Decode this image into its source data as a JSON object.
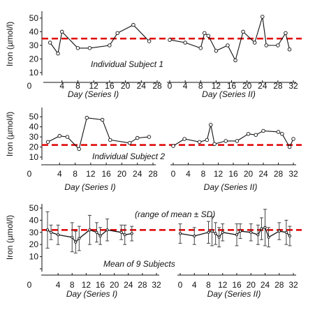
{
  "chart_data": [
    {
      "type": "line",
      "ylabel": "Iron (µmol/l)",
      "annotation": "Individual Subject 1",
      "ylim": [
        10,
        52
      ],
      "yticks": [
        10,
        20,
        30,
        40,
        50
      ],
      "ytick_labels": [
        "10",
        "20",
        "30",
        "40",
        "50"
      ],
      "reference_line": 35,
      "reference_color": "#e00000",
      "panels": [
        {
          "xlabel": "Day (Series I)",
          "xlim": [
            0,
            28
          ],
          "xticks": [
            4,
            8,
            12,
            16,
            20,
            24,
            28
          ],
          "xtick_labels": [
            "4",
            "8",
            "12",
            "16",
            "20",
            "24",
            "28"
          ],
          "series": [
            {
              "x": [
                1,
                3,
                4,
                8,
                11,
                16,
                18,
                22,
                26
              ],
              "y": [
                32,
                24,
                40,
                28,
                28,
                30,
                39,
                45,
                33
              ]
            }
          ]
        },
        {
          "xlabel": "Day (Series II)",
          "xlim": [
            0,
            32
          ],
          "xticks": [
            0,
            4,
            8,
            12,
            16,
            20,
            24,
            28,
            32
          ],
          "xtick_labels": [
            "0",
            "4",
            "8",
            "12",
            "16",
            "20",
            "24",
            "28",
            "32"
          ],
          "series": [
            {
              "x": [
                0,
                4,
                8,
                9,
                10,
                12,
                15,
                17,
                19,
                22,
                24,
                25,
                28,
                30,
                31
              ],
              "y": [
                34,
                32,
                28,
                39,
                37,
                26,
                30,
                19,
                40,
                32,
                51,
                30,
                30,
                39,
                27
              ]
            }
          ]
        }
      ]
    },
    {
      "type": "line",
      "ylabel": "Iron (µmol/l)",
      "annotation": "Individual Subject 2",
      "ylim": [
        10,
        55
      ],
      "yticks": [
        10,
        20,
        30,
        40,
        50
      ],
      "ytick_labels": [
        "10",
        "20",
        "30",
        "40",
        "50"
      ],
      "reference_line": 22,
      "reference_color": "#e00000",
      "panels": [
        {
          "xlabel": "Day (Series I)",
          "xlim": [
            0,
            28
          ],
          "xticks": [
            4,
            8,
            12,
            16,
            20,
            24,
            28
          ],
          "xtick_labels": [
            "4",
            "8",
            "12",
            "16",
            "20",
            "24",
            "28"
          ],
          "series": [
            {
              "x": [
                1,
                4,
                6,
                9,
                11,
                15,
                17,
                22,
                24,
                27
              ],
              "y": [
                25,
                31,
                30,
                18,
                49,
                47,
                27,
                24,
                29,
                30
              ]
            }
          ]
        },
        {
          "xlabel": "Day (Series II)",
          "xlim": [
            0,
            32
          ],
          "xticks": [
            0,
            4,
            8,
            12,
            16,
            20,
            24,
            28,
            32
          ],
          "xtick_labels": [
            "0",
            "4",
            "8",
            "12",
            "16",
            "20",
            "24",
            "28",
            "32"
          ],
          "series": [
            {
              "x": [
                0,
                3,
                7,
                9,
                10,
                11,
                14,
                17,
                20,
                22,
                24,
                28,
                29,
                31,
                32
              ],
              "y": [
                21,
                28,
                25,
                27,
                42,
                23,
                26,
                26,
                33,
                32,
                36,
                35,
                33,
                20,
                28
              ]
            }
          ]
        }
      ]
    },
    {
      "type": "line",
      "ylabel": "Iron (µmol/l)",
      "annotation": "(range of mean ± SD)",
      "annotation_2": "Mean of 9 Subjects",
      "ylim": [
        0,
        50
      ],
      "yticks": [
        0,
        10,
        20,
        30,
        40,
        50
      ],
      "ytick_labels": [
        "",
        "10",
        "20",
        "30",
        "40",
        "50"
      ],
      "reference_line": 32,
      "reference_color": "#e00000",
      "panels": [
        {
          "xlabel": "Day (Series I)",
          "xlim": [
            0,
            32
          ],
          "xticks": [
            4,
            8,
            12,
            16,
            20,
            24,
            28,
            32
          ],
          "xtick_labels": [
            "4",
            "8",
            "12",
            "16",
            "20",
            "24",
            "28",
            "32"
          ],
          "series": [
            {
              "x": [
                1,
                2,
                4,
                8,
                9,
                10,
                13,
                15,
                16,
                18,
                22,
                23,
                25
              ],
              "y": [
                32,
                30,
                28,
                26,
                22,
                25,
                32,
                30,
                27,
                32,
                30,
                28,
                29
              ],
              "err": [
                15,
                6,
                8,
                12,
                9,
                10,
                12,
                8,
                7,
                9,
                6,
                8,
                6
              ]
            }
          ]
        },
        {
          "xlabel": "Day (Series II)",
          "xlim": [
            0,
            32
          ],
          "xticks": [
            0,
            4,
            8,
            12,
            16,
            20,
            24,
            28,
            32
          ],
          "xtick_labels": [
            "0",
            "4",
            "8",
            "12",
            "16",
            "20",
            "24",
            "28",
            "32"
          ],
          "series": [
            {
              "x": [
                0,
                4,
                8,
                9,
                10,
                11,
                12,
                16,
                17,
                20,
                22,
                23,
                24,
                25,
                28,
                30,
                31
              ],
              "y": [
                29,
                27,
                30,
                31,
                29,
                26,
                30,
                28,
                31,
                30,
                28,
                33,
                34,
                26,
                31,
                30,
                27
              ],
              "err": [
                8,
                7,
                9,
                12,
                9,
                8,
                7,
                9,
                6,
                7,
                8,
                9,
                15,
                8,
                7,
                10,
                8
              ]
            }
          ]
        }
      ]
    }
  ]
}
